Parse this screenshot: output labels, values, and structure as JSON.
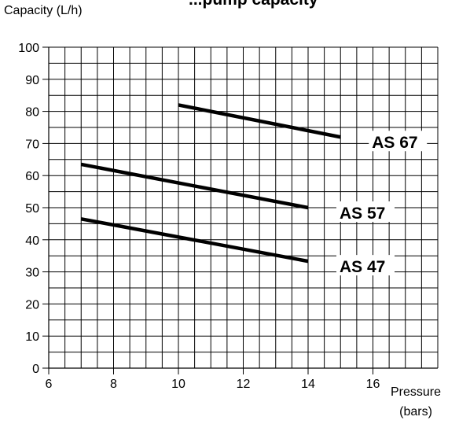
{
  "chart_data": {
    "type": "line",
    "title": "...pump capacity",
    "ylabel": "Capacity (L/h)",
    "xlabel_line1": "Pressure",
    "xlabel_line2": "(bars)",
    "xlim": [
      6,
      18
    ],
    "ylim": [
      0,
      100
    ],
    "x_ticks": [
      6,
      8,
      10,
      12,
      14,
      16
    ],
    "y_ticks": [
      0,
      10,
      20,
      30,
      40,
      50,
      60,
      70,
      80,
      90,
      100
    ],
    "grid": true,
    "series": [
      {
        "name": "AS 67",
        "x": [
          10,
          15
        ],
        "y": [
          82,
          72
        ]
      },
      {
        "name": "AS 57",
        "x": [
          7,
          14
        ],
        "y": [
          63.5,
          50
        ]
      },
      {
        "name": "AS 47",
        "x": [
          7,
          14
        ],
        "y": [
          46.5,
          33.3
        ]
      }
    ],
    "line_color": "#000000"
  }
}
